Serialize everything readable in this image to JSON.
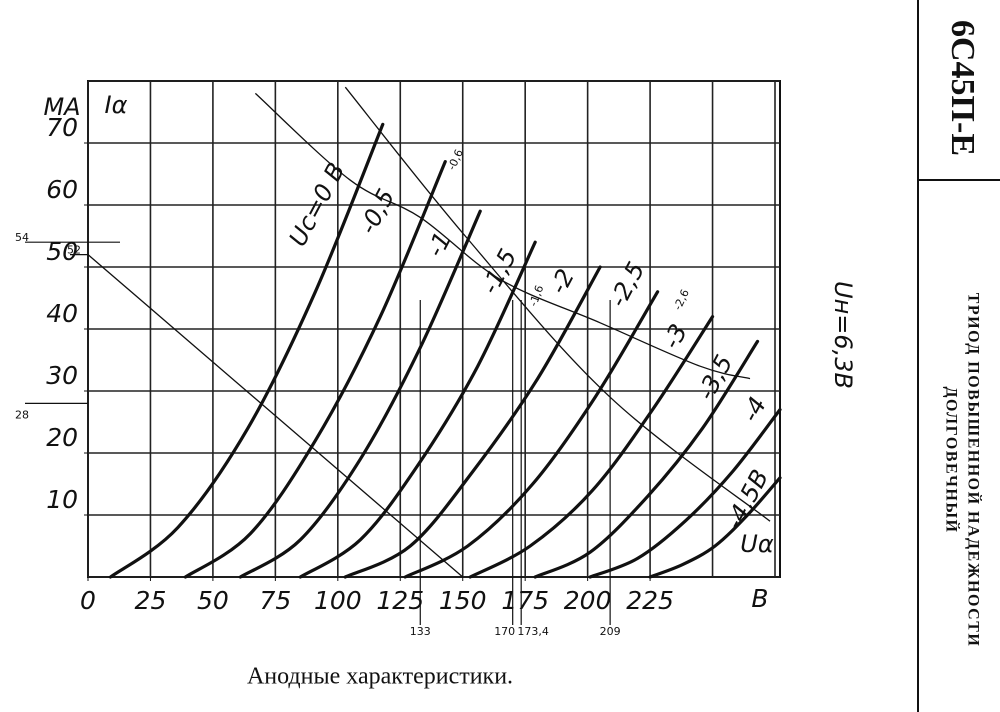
{
  "chart_data": {
    "type": "line",
    "caption": "Анодные характеристики.",
    "side_code": "6С45П-Е",
    "side_lines": [
      "ТРИОД ПОВЫШЕННОЙ НАДЕЖНОСТИ",
      "ДОЛГОВЕЧНЫЙ"
    ],
    "heater_note": "Uн=6,3B",
    "y_unit": "MA",
    "y_label": "Iα",
    "x_label": "Uα",
    "x_unit": "B",
    "xlim": [
      0,
      277
    ],
    "ylim": [
      0,
      80
    ],
    "xticks": [
      0,
      25,
      50,
      75,
      100,
      125,
      150,
      175,
      200,
      225
    ],
    "yticks": [
      10,
      20,
      30,
      40,
      50,
      60,
      70
    ],
    "grid": true,
    "series": [
      {
        "name": "Uc=0 B",
        "color": "#111111",
        "x": [
          9,
          36,
          64,
          91,
          118
        ],
        "values": [
          0,
          8,
          24,
          46,
          73
        ]
      },
      {
        "name": "-0,5",
        "color": "#111111",
        "x": [
          39,
          65,
          91,
          117,
          143
        ],
        "values": [
          0,
          7,
          22,
          42,
          67
        ]
      },
      {
        "name": "-1",
        "color": "#111111",
        "x": [
          61,
          85,
          109,
          133,
          157
        ],
        "values": [
          0,
          6,
          19,
          37,
          59
        ]
      },
      {
        "name": "-1,5",
        "color": "#111111",
        "x": [
          85,
          109,
          132,
          156,
          179
        ],
        "values": [
          0,
          6,
          18,
          34,
          54
        ]
      },
      {
        "name": "-2",
        "color": "#111111",
        "x": [
          103,
          129,
          154,
          180,
          205
        ],
        "values": [
          0,
          5,
          17,
          32,
          50
        ]
      },
      {
        "name": "-2,5",
        "color": "#111111",
        "x": [
          127,
          152,
          178,
          203,
          228
        ],
        "values": [
          0,
          5,
          15,
          29,
          46
        ]
      },
      {
        "name": "-3",
        "color": "#111111",
        "x": [
          153,
          177,
          202,
          226,
          250
        ],
        "values": [
          0,
          5,
          14,
          27,
          42
        ]
      },
      {
        "name": "-3,5",
        "color": "#111111",
        "x": [
          179,
          201,
          224,
          246,
          268
        ],
        "values": [
          0,
          4,
          13,
          24,
          38
        ]
      },
      {
        "name": "-4",
        "color": "#111111",
        "x": [
          201,
          220,
          239,
          258,
          277
        ],
        "values": [
          0,
          3,
          9,
          17,
          27
        ]
      },
      {
        "name": "-4,5B",
        "color": "#111111",
        "x": [
          225,
          238,
          251,
          264,
          277
        ],
        "values": [
          0,
          2,
          5,
          10,
          16
        ]
      }
    ],
    "lines": [
      {
        "x": [
          0,
          150
        ],
        "values": [
          52,
          0
        ]
      },
      {
        "x": [
          67,
          105,
          133,
          165,
          205,
          245,
          265
        ],
        "values": [
          78,
          64,
          58,
          48,
          41,
          34,
          32
        ]
      },
      {
        "x": [
          103,
          151,
          209,
          273
        ],
        "values": [
          79,
          55,
          29,
          9
        ]
      }
    ],
    "annotations": [
      "-0,6",
      "-1,6",
      "-2,6"
    ],
    "markers_x": [
      133,
      170,
      {
        "value": 173.4,
        "label": "173,4"
      },
      209
    ],
    "markers_y": [
      54,
      52,
      28
    ]
  }
}
